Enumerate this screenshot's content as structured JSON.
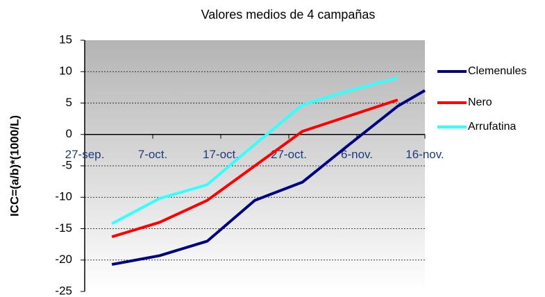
{
  "chart_data": {
    "type": "line",
    "title": "Valores medios de 4 campañas",
    "y_label": "ICC=(a/b)*(1000/L)",
    "x": [
      4,
      11,
      18,
      25,
      32,
      39,
      46,
      50
    ],
    "xlim": [
      0,
      50
    ],
    "xticks": [
      {
        "value": 0,
        "label": "27-sep."
      },
      {
        "value": 10,
        "label": "7-oct."
      },
      {
        "value": 20,
        "label": "17-oct."
      },
      {
        "value": 30,
        "label": "27-oct."
      },
      {
        "value": 40,
        "label": "6-nov."
      },
      {
        "value": 50,
        "label": "16-nov."
      }
    ],
    "ylim": [
      -25,
      15
    ],
    "yticks": [
      -25,
      -20,
      -15,
      -10,
      -5,
      0,
      5,
      10,
      15
    ],
    "grid": true,
    "legend": "right",
    "series": [
      {
        "name": "Clemenules",
        "color": "#000080",
        "values": [
          -20.7,
          -19.3,
          -17,
          -10.5,
          -7.6,
          -1.5,
          4.5,
          7
        ]
      },
      {
        "name": "Nero",
        "color": "#ff0000",
        "values": [
          -16.3,
          -14,
          -10.5,
          -5,
          0.5,
          3,
          5.5,
          null
        ]
      },
      {
        "name": "Arrufatina",
        "color": "#33ffff",
        "values": [
          -14.2,
          -10.2,
          -8,
          -1.6,
          4.7,
          7,
          9,
          null
        ]
      }
    ]
  }
}
